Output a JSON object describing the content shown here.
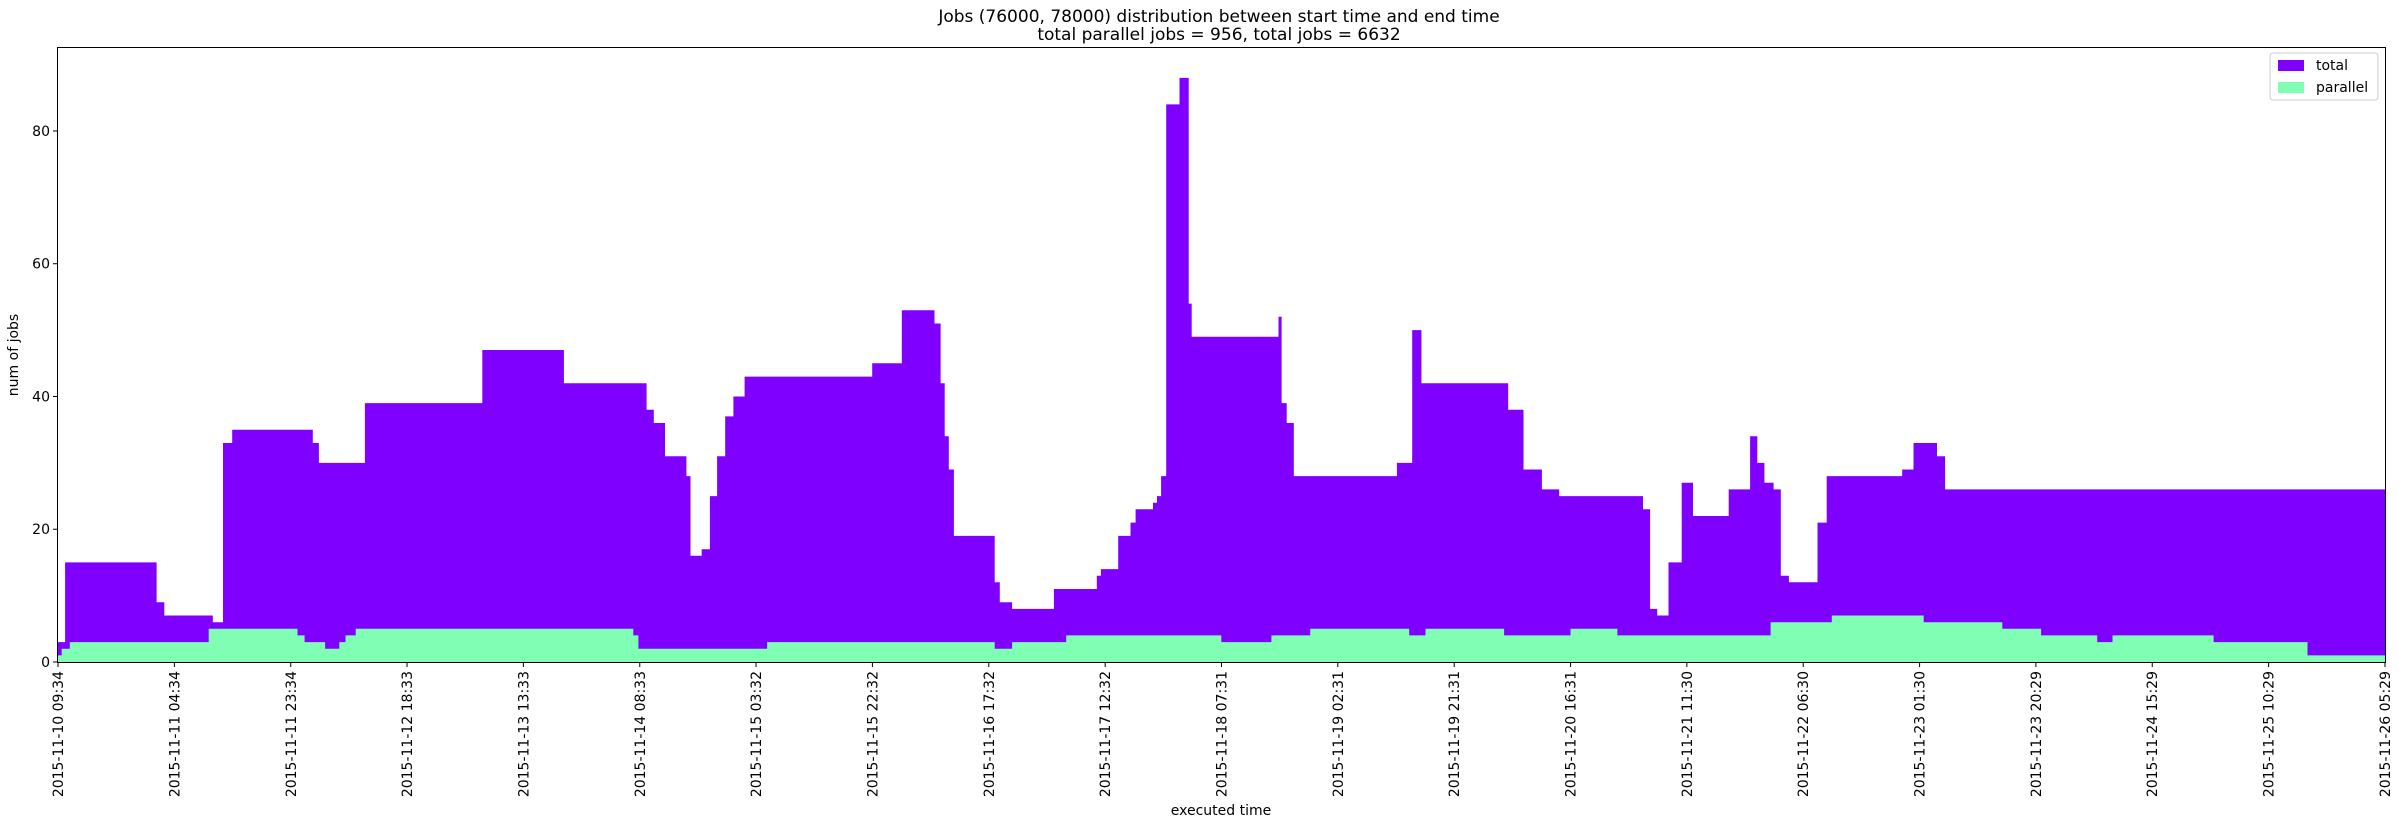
{
  "chart_data": {
    "type": "area",
    "title": "Jobs (76000, 78000) distribution between start time and end time",
    "subtitle": "total parallel jobs = 956, total jobs = 6632",
    "xlabel": "executed time",
    "ylabel": "num of jobs",
    "x_range": [
      "2015-11-10 09:34",
      "2015-11-26 05:29"
    ],
    "ylim": [
      0,
      92.5
    ],
    "y_ticks": [
      0,
      20,
      40,
      60,
      80
    ],
    "x_tick_labels": [
      "2015-11-10 09:34",
      "2015-11-11 04:34",
      "2015-11-11 23:34",
      "2015-11-12 18:33",
      "2015-11-13 13:33",
      "2015-11-14 08:33",
      "2015-11-15 03:32",
      "2015-11-15 22:32",
      "2015-11-16 17:32",
      "2015-11-17 12:32",
      "2015-11-18 07:31",
      "2015-11-19 02:31",
      "2015-11-19 21:31",
      "2015-11-20 16:31",
      "2015-11-21 11:30",
      "2015-11-22 06:30",
      "2015-11-23 01:30",
      "2015-11-23 20:29",
      "2015-11-24 15:29",
      "2015-11-25 10:29",
      "2015-11-26 05:29"
    ],
    "legend_position": "top-right",
    "grid": false,
    "series": [
      {
        "name": "total",
        "color": "#8000ff",
        "x": [
          "2015-11-10 09:34",
          "2015-11-10 10:44",
          "2015-11-10 12:30",
          "2015-11-11 01:40",
          "2015-11-11 02:55",
          "2015-11-11 04:00",
          "2015-11-11 10:50",
          "2015-11-11 12:30",
          "2015-11-11 14:00",
          "2015-11-11 16:10",
          "2015-11-12 03:10",
          "2015-11-12 04:10",
          "2015-11-12 11:40",
          "2015-11-12 23:10",
          "2015-11-13 06:50",
          "2015-11-13 15:40",
          "2015-11-13 20:10",
          "2015-11-14 03:30",
          "2015-11-14 09:40",
          "2015-11-14 10:50",
          "2015-11-14 11:50",
          "2015-11-14 12:40",
          "2015-11-14 16:10",
          "2015-11-14 16:50",
          "2015-11-14 17:50",
          "2015-11-14 18:40",
          "2015-11-14 20:00",
          "2015-11-14 21:10",
          "2015-11-14 22:30",
          "2015-11-14 23:50",
          "2015-11-15 01:40",
          "2015-11-15 22:30",
          "2015-11-16 03:20",
          "2015-11-16 06:20",
          "2015-11-16 08:40",
          "2015-11-16 09:40",
          "2015-11-16 10:20",
          "2015-11-16 11:00",
          "2015-11-16 11:50",
          "2015-11-16 18:30",
          "2015-11-16 19:20",
          "2015-11-16 21:20",
          "2015-11-17 04:10",
          "2015-11-17 11:10",
          "2015-11-17 11:50",
          "2015-11-17 14:40",
          "2015-11-17 16:40",
          "2015-11-17 17:30",
          "2015-11-17 20:20",
          "2015-11-17 21:00",
          "2015-11-17 21:40",
          "2015-11-17 22:30",
          "2015-11-18 00:40",
          "2015-11-18 02:10",
          "2015-11-18 02:40",
          "2015-11-18 16:50",
          "2015-11-18 17:20",
          "2015-11-18 18:10",
          "2015-11-18 19:20",
          "2015-11-19 12:10",
          "2015-11-19 14:40",
          "2015-11-19 16:10",
          "2015-11-20 06:20",
          "2015-11-20 08:50",
          "2015-11-20 11:50",
          "2015-11-20 14:40",
          "2015-11-21 04:20",
          "2015-11-21 05:30",
          "2015-11-21 06:40",
          "2015-11-21 08:30",
          "2015-11-21 10:40",
          "2015-11-21 12:30",
          "2015-11-21 18:20",
          "2015-11-21 21:50",
          "2015-11-21 23:00",
          "2015-11-22 00:10",
          "2015-11-22 01:40",
          "2015-11-22 02:50",
          "2015-11-22 04:10",
          "2015-11-22 08:50",
          "2015-11-22 10:20",
          "2015-11-22 22:40",
          "2015-11-23 00:30",
          "2015-11-23 04:20",
          "2015-11-23 05:40",
          "2015-11-23 06:40",
          "2015-11-23 10:50",
          "2015-11-23 16:20",
          "2015-11-23 18:00",
          "2015-11-23 19:30",
          "2015-11-24 09:10",
          "2015-11-24 10:10",
          "2015-11-24 11:10",
          "2015-11-24 14:10",
          "2015-11-24 18:20",
          "2015-11-24 19:10",
          "2015-11-24 20:50",
          "2015-11-25 01:10",
          "2015-11-25 02:20",
          "2015-11-25 06:20",
          "2015-11-25 06:50",
          "2015-11-25 07:30",
          "2015-11-25 11:50",
          "2015-11-25 18:30",
          "2015-11-26 02:30",
          "2015-11-26 04:20",
          "2015-11-26 05:00",
          "2015-11-26 05:29"
        ],
        "values": [
          3,
          15,
          15,
          9,
          7,
          7,
          6,
          33,
          35,
          35,
          33,
          30,
          39,
          39,
          47,
          47,
          42,
          42,
          38,
          36,
          36,
          31,
          28,
          16,
          16,
          17,
          25,
          31,
          37,
          40,
          43,
          45,
          53,
          53,
          51,
          42,
          34,
          29,
          19,
          12,
          9,
          8,
          11,
          13,
          14,
          19,
          21,
          23,
          24,
          25,
          28,
          84,
          88,
          54,
          49,
          52,
          39,
          36,
          28,
          30,
          50,
          42,
          38,
          29,
          26,
          25,
          23,
          8,
          7,
          15,
          27,
          22,
          26,
          34,
          30,
          27,
          26,
          13,
          12,
          21,
          28,
          29,
          33,
          31,
          26,
          26,
          26,
          26,
          26,
          26,
          26,
          26,
          26,
          26,
          26,
          26,
          26,
          26,
          26,
          26,
          26,
          26,
          26,
          26,
          26,
          26,
          26,
          26
        ]
      },
      {
        "name": "parallel",
        "color": "#80ffb4",
        "x": [
          "2015-11-10 09:34",
          "2015-11-10 10:10",
          "2015-11-10 11:30",
          "2015-11-11 10:10",
          "2015-11-12 00:40",
          "2015-11-12 01:50",
          "2015-11-12 05:10",
          "2015-11-12 07:30",
          "2015-11-12 08:30",
          "2015-11-12 10:10",
          "2015-11-13 19:50",
          "2015-11-14 07:30",
          "2015-11-14 08:20",
          "2015-11-15 05:20",
          "2015-11-16 18:30",
          "2015-11-16 21:20",
          "2015-11-17 06:10",
          "2015-11-18 07:30",
          "2015-11-18 15:40",
          "2015-11-18 22:00",
          "2015-11-19 02:30",
          "2015-11-19 14:10",
          "2015-11-19 16:50",
          "2015-11-20 05:40",
          "2015-11-20 16:30",
          "2015-11-21 00:10",
          "2015-11-21 13:40",
          "2015-11-22 01:10",
          "2015-11-22 11:10",
          "2015-11-22 13:10",
          "2015-11-23 02:10",
          "2015-11-23 15:00",
          "2015-11-23 21:20",
          "2015-11-24 06:30",
          "2015-11-24 09:00",
          "2015-11-24 12:10",
          "2015-11-25 01:30",
          "2015-11-25 16:50",
          "2015-11-26 02:40",
          "2015-11-26 05:29"
        ],
        "values": [
          1,
          2,
          3,
          5,
          4,
          3,
          2,
          3,
          4,
          5,
          5,
          4,
          2,
          3,
          2,
          3,
          4,
          3,
          4,
          5,
          5,
          4,
          5,
          4,
          5,
          4,
          4,
          6,
          7,
          7,
          6,
          5,
          4,
          3,
          4,
          4,
          3,
          1,
          1,
          1
        ]
      }
    ]
  }
}
